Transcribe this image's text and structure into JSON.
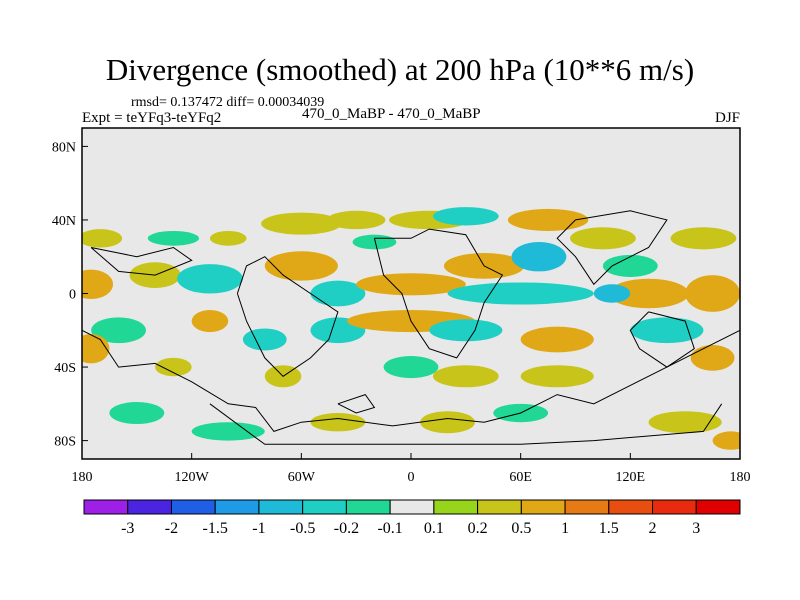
{
  "chart_data": {
    "type": "heatmap",
    "title": "Divergence (smoothed) at 200 hPa (10**6 m/s)",
    "stats_text": "rmsd= 0.137472 diff= 0.00034039",
    "left_label": "Expt = teYFq3-teYFq2",
    "center_label": "470_0_MaBP - 470_0_MaBP",
    "right_label": "DJF",
    "x_ticks": [
      {
        "value": -180,
        "label": "180"
      },
      {
        "value": -120,
        "label": "120W"
      },
      {
        "value": -60,
        "label": "60W"
      },
      {
        "value": 0,
        "label": "0"
      },
      {
        "value": 60,
        "label": "60E"
      },
      {
        "value": 120,
        "label": "120E"
      },
      {
        "value": 180,
        "label": "180"
      }
    ],
    "y_ticks": [
      {
        "value": 80,
        "label": "80N"
      },
      {
        "value": 40,
        "label": "40N"
      },
      {
        "value": 0,
        "label": "0"
      },
      {
        "value": -40,
        "label": "40S"
      },
      {
        "value": -80,
        "label": "80S"
      }
    ],
    "xlim": [
      -180,
      180
    ],
    "ylim": [
      -90,
      90
    ],
    "colorbar_levels": [
      "-3",
      "-2",
      "-1.5",
      "-1",
      "-0.5",
      "-0.2",
      "-0.1",
      "0.1",
      "0.2",
      "0.5",
      "1",
      "1.5",
      "2",
      "3"
    ],
    "colorbar_colors": [
      "#9e20e6",
      "#4a24e0",
      "#1f5fe6",
      "#1e9ae6",
      "#1fbad8",
      "#20cfc4",
      "#20d796",
      "#e8e8e8",
      "#96d51c",
      "#c8c41a",
      "#e0a816",
      "#e67a14",
      "#e84e10",
      "#e82a0e",
      "#e00000"
    ],
    "background_color": "#e8e8e8",
    "blobs": [
      {
        "lon": -170,
        "lat": 30,
        "rlon": 12,
        "rlat": 5,
        "value": 0.2
      },
      {
        "lon": -130,
        "lat": 30,
        "rlon": 14,
        "rlat": 4,
        "value": -0.2
      },
      {
        "lon": -100,
        "lat": 30,
        "rlon": 10,
        "rlat": 4,
        "value": 0.2
      },
      {
        "lon": -60,
        "lat": 38,
        "rlon": 22,
        "rlat": 6,
        "value": 0.2
      },
      {
        "lon": -30,
        "lat": 40,
        "rlon": 16,
        "rlat": 5,
        "value": 0.2
      },
      {
        "lon": -20,
        "lat": 28,
        "rlon": 12,
        "rlat": 4,
        "value": -0.2
      },
      {
        "lon": 10,
        "lat": 40,
        "rlon": 22,
        "rlat": 5,
        "value": 0.2
      },
      {
        "lon": 30,
        "lat": 42,
        "rlon": 18,
        "rlat": 5,
        "value": -0.5
      },
      {
        "lon": 75,
        "lat": 40,
        "rlon": 22,
        "rlat": 6,
        "value": 0.5
      },
      {
        "lon": 105,
        "lat": 30,
        "rlon": 18,
        "rlat": 6,
        "value": 0.2
      },
      {
        "lon": 120,
        "lat": 15,
        "rlon": 15,
        "rlat": 6,
        "value": -0.2
      },
      {
        "lon": 160,
        "lat": 30,
        "rlon": 18,
        "rlat": 6,
        "value": 0.2
      },
      {
        "lon": -175,
        "lat": 5,
        "rlon": 12,
        "rlat": 8,
        "value": 0.5
      },
      {
        "lon": -140,
        "lat": 10,
        "rlon": 14,
        "rlat": 7,
        "value": 0.2
      },
      {
        "lon": -110,
        "lat": 8,
        "rlon": 18,
        "rlat": 8,
        "value": -0.5
      },
      {
        "lon": -60,
        "lat": 15,
        "rlon": 20,
        "rlat": 8,
        "value": 0.5
      },
      {
        "lon": -40,
        "lat": 0,
        "rlon": 15,
        "rlat": 7,
        "value": -0.5
      },
      {
        "lon": 0,
        "lat": 5,
        "rlon": 30,
        "rlat": 6,
        "value": 0.5
      },
      {
        "lon": 40,
        "lat": 15,
        "rlon": 22,
        "rlat": 7,
        "value": 0.5
      },
      {
        "lon": 60,
        "lat": 0,
        "rlon": 40,
        "rlat": 6,
        "value": -0.5
      },
      {
        "lon": 70,
        "lat": 20,
        "rlon": 15,
        "rlat": 8,
        "value": -1
      },
      {
        "lon": 130,
        "lat": 0,
        "rlon": 22,
        "rlat": 8,
        "value": 0.5
      },
      {
        "lon": 110,
        "lat": 0,
        "rlon": 10,
        "rlat": 5,
        "value": -1
      },
      {
        "lon": 165,
        "lat": 0,
        "rlon": 15,
        "rlat": 10,
        "value": 0.5
      },
      {
        "lon": -160,
        "lat": -20,
        "rlon": 15,
        "rlat": 7,
        "value": -0.2
      },
      {
        "lon": -110,
        "lat": -15,
        "rlon": 10,
        "rlat": 6,
        "value": 0.5
      },
      {
        "lon": -80,
        "lat": -25,
        "rlon": 12,
        "rlat": 6,
        "value": -0.5
      },
      {
        "lon": -40,
        "lat": -20,
        "rlon": 15,
        "rlat": 7,
        "value": -0.5
      },
      {
        "lon": 0,
        "lat": -15,
        "rlon": 35,
        "rlat": 6,
        "value": 0.5
      },
      {
        "lon": 30,
        "lat": -20,
        "rlon": 20,
        "rlat": 6,
        "value": -0.5
      },
      {
        "lon": 80,
        "lat": -25,
        "rlon": 20,
        "rlat": 7,
        "value": 0.5
      },
      {
        "lon": 140,
        "lat": -20,
        "rlon": 20,
        "rlat": 7,
        "value": -0.5
      },
      {
        "lon": -175,
        "lat": -30,
        "rlon": 10,
        "rlat": 8,
        "value": 0.5
      },
      {
        "lon": -130,
        "lat": -40,
        "rlon": 10,
        "rlat": 5,
        "value": 0.2
      },
      {
        "lon": -70,
        "lat": -45,
        "rlon": 10,
        "rlat": 6,
        "value": 0.2
      },
      {
        "lon": 0,
        "lat": -40,
        "rlon": 15,
        "rlat": 6,
        "value": -0.2
      },
      {
        "lon": 30,
        "lat": -45,
        "rlon": 18,
        "rlat": 6,
        "value": 0.2
      },
      {
        "lon": 80,
        "lat": -45,
        "rlon": 20,
        "rlat": 6,
        "value": 0.2
      },
      {
        "lon": 165,
        "lat": -35,
        "rlon": 12,
        "rlat": 7,
        "value": 0.5
      },
      {
        "lon": -150,
        "lat": -65,
        "rlon": 15,
        "rlat": 6,
        "value": -0.2
      },
      {
        "lon": -100,
        "lat": -75,
        "rlon": 20,
        "rlat": 5,
        "value": -0.2
      },
      {
        "lon": -40,
        "lat": -70,
        "rlon": 15,
        "rlat": 5,
        "value": 0.2
      },
      {
        "lon": 20,
        "lat": -70,
        "rlon": 15,
        "rlat": 6,
        "value": 0.2
      },
      {
        "lon": 60,
        "lat": -65,
        "rlon": 15,
        "rlat": 5,
        "value": -0.2
      },
      {
        "lon": 150,
        "lat": -70,
        "rlon": 20,
        "rlat": 6,
        "value": 0.2
      },
      {
        "lon": 175,
        "lat": -80,
        "rlon": 10,
        "rlat": 5,
        "value": 0.5
      }
    ],
    "coastlines": [
      [
        [
          -180,
          -20
        ],
        [
          -170,
          -25
        ],
        [
          -160,
          -40
        ],
        [
          -140,
          -38
        ],
        [
          -120,
          -48
        ],
        [
          -100,
          -60
        ],
        [
          -85,
          -62
        ],
        [
          -75,
          -75
        ],
        [
          -60,
          -70
        ],
        [
          -40,
          -68
        ],
        [
          -10,
          -72
        ],
        [
          20,
          -68
        ],
        [
          40,
          -70
        ],
        [
          60,
          -65
        ],
        [
          80,
          -55
        ],
        [
          100,
          -60
        ],
        [
          120,
          -50
        ],
        [
          140,
          -40
        ],
        [
          160,
          -30
        ],
        [
          180,
          -20
        ]
      ],
      [
        [
          -95,
          0
        ],
        [
          -90,
          15
        ],
        [
          -80,
          20
        ],
        [
          -70,
          10
        ],
        [
          -55,
          0
        ],
        [
          -40,
          -10
        ],
        [
          -45,
          -25
        ],
        [
          -55,
          -35
        ],
        [
          -70,
          -45
        ],
        [
          -80,
          -35
        ],
        [
          -90,
          -15
        ],
        [
          -95,
          0
        ]
      ],
      [
        [
          -20,
          30
        ],
        [
          0,
          30
        ],
        [
          10,
          35
        ],
        [
          30,
          32
        ],
        [
          40,
          15
        ],
        [
          50,
          10
        ],
        [
          40,
          -5
        ],
        [
          35,
          -20
        ],
        [
          25,
          -35
        ],
        [
          10,
          -30
        ],
        [
          0,
          -15
        ],
        [
          -5,
          0
        ],
        [
          -15,
          10
        ],
        [
          -20,
          30
        ]
      ],
      [
        [
          90,
          40
        ],
        [
          120,
          45
        ],
        [
          140,
          40
        ],
        [
          130,
          25
        ],
        [
          110,
          15
        ],
        [
          100,
          5
        ],
        [
          90,
          20
        ],
        [
          80,
          30
        ],
        [
          90,
          40
        ]
      ],
      [
        [
          130,
          -10
        ],
        [
          150,
          -15
        ],
        [
          155,
          -30
        ],
        [
          140,
          -40
        ],
        [
          125,
          -30
        ],
        [
          120,
          -20
        ],
        [
          130,
          -10
        ]
      ],
      [
        [
          -175,
          25
        ],
        [
          -150,
          20
        ],
        [
          -130,
          25
        ],
        [
          -120,
          18
        ],
        [
          -140,
          10
        ],
        [
          -160,
          12
        ],
        [
          -175,
          25
        ]
      ],
      [
        [
          -110,
          -60
        ],
        [
          -80,
          -82
        ],
        [
          -20,
          -82
        ],
        [
          60,
          -82
        ],
        [
          100,
          -80
        ],
        [
          160,
          -75
        ],
        [
          170,
          -60
        ]
      ],
      [
        [
          -40,
          -60
        ],
        [
          -30,
          -65
        ],
        [
          -20,
          -62
        ],
        [
          -25,
          -55
        ],
        [
          -40,
          -60
        ]
      ]
    ]
  }
}
